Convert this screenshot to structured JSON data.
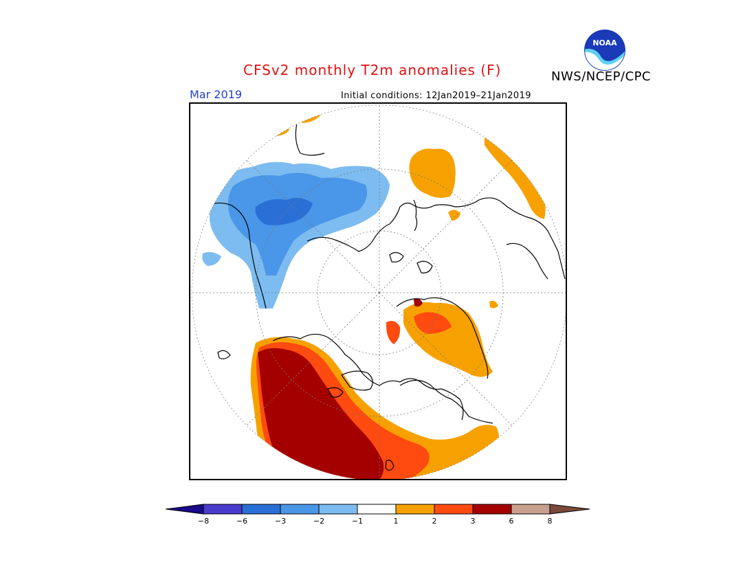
{
  "header": {
    "title": "CFSv2 monthly T2m anomalies (F)",
    "agency": "NWS/NCEP/CPC",
    "month": "Mar 2019",
    "initial_conditions": "Initial conditions: 12Jan2019–21Jan2019",
    "logo_text": "NOAA"
  },
  "legend": {
    "ticks": [
      "−8",
      "−6",
      "−3",
      "−2",
      "−1",
      "1",
      "2",
      "3",
      "6",
      "8"
    ],
    "colors": [
      "#1a0a8c",
      "#4a3ccc",
      "#2a6fd6",
      "#4a96e8",
      "#7dbcf0",
      "#ffffff",
      "#f7a100",
      "#ff4a10",
      "#a50000",
      "#c9a090",
      "#7a4a3a"
    ]
  },
  "colors": {
    "title": "#e01010",
    "month": "#1f3fd6"
  }
}
